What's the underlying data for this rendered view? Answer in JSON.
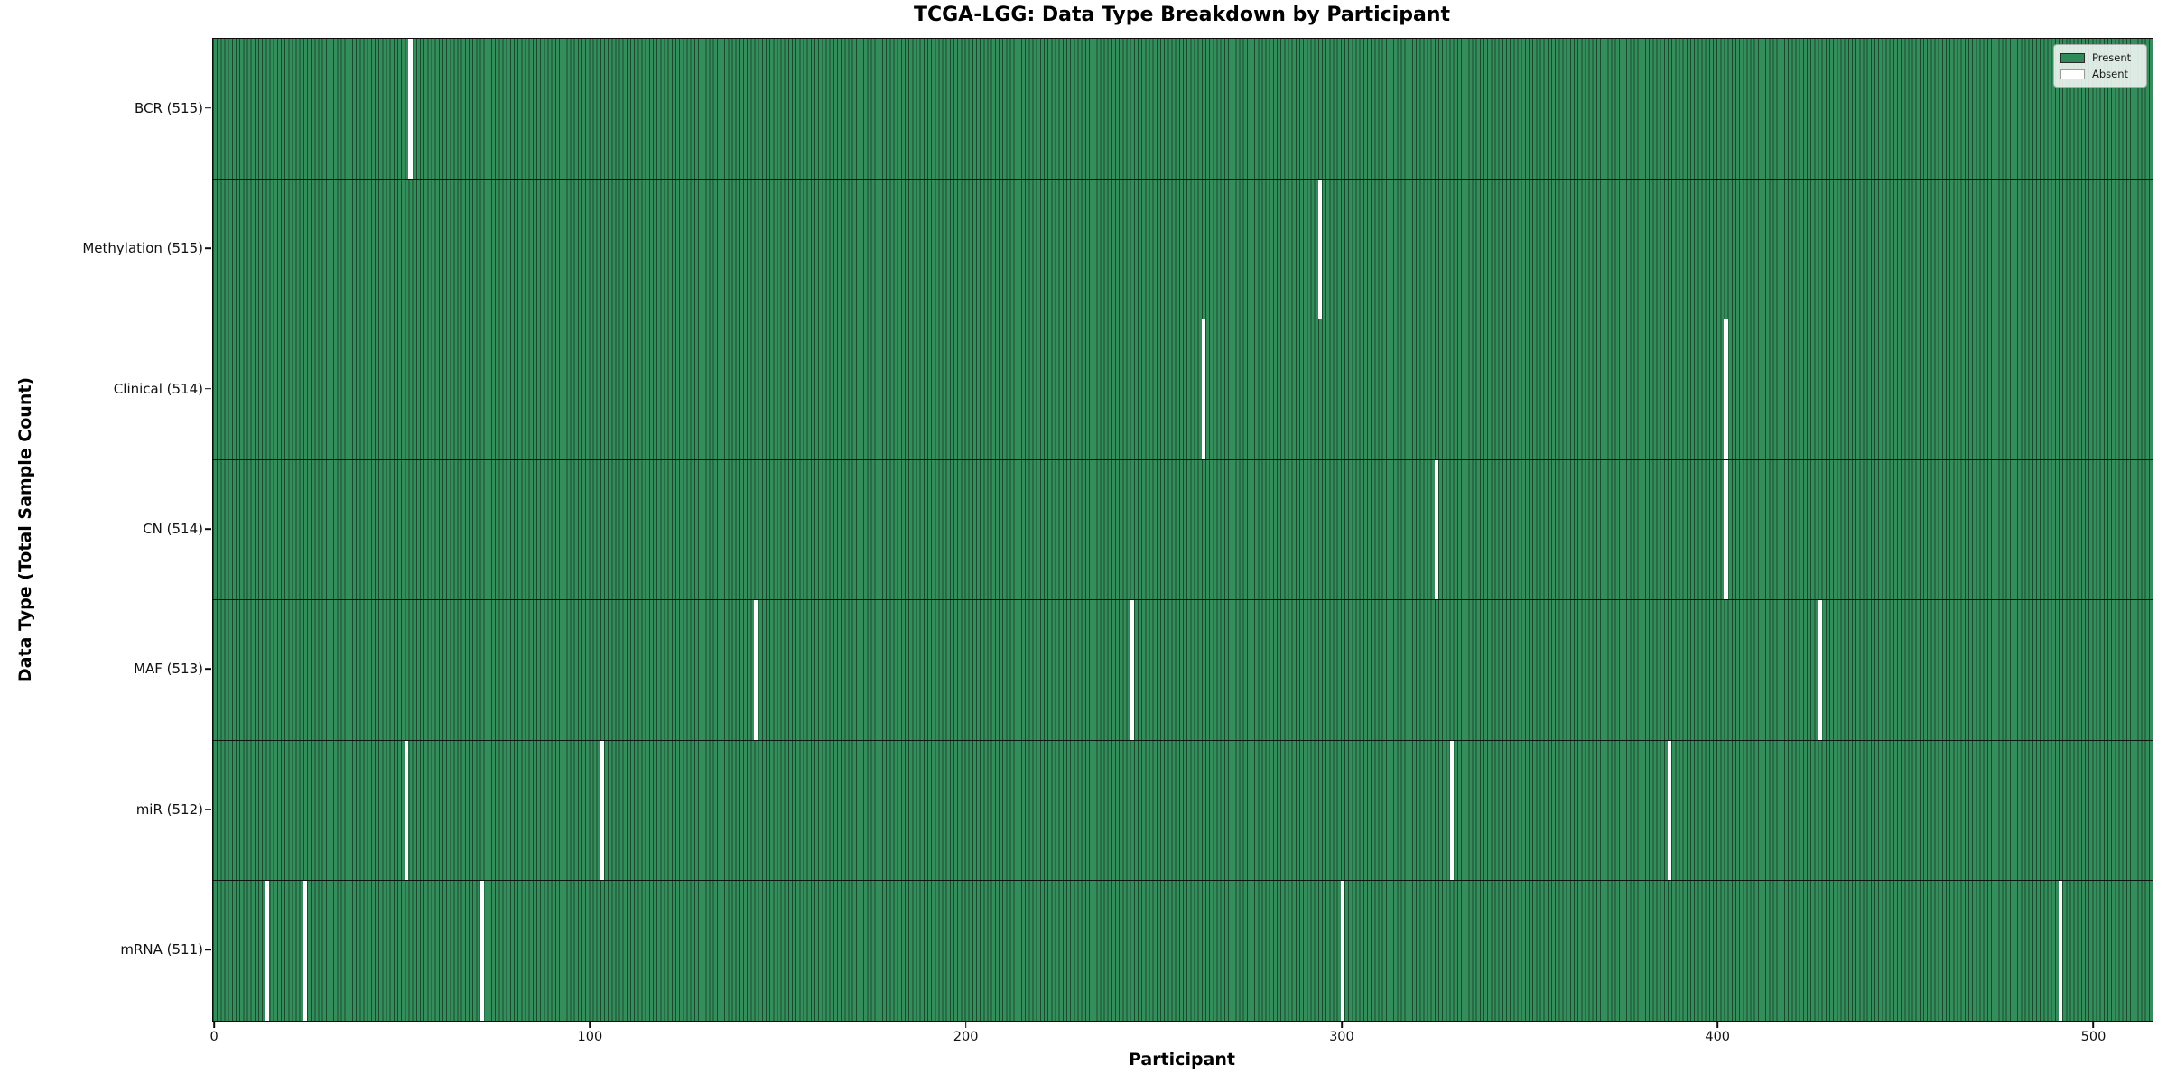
{
  "chart_data": {
    "type": "heatmap",
    "title": "TCGA-LGG: Data Type Breakdown by Participant",
    "xlabel": "Participant",
    "ylabel": "Data Type (Total Sample Count)",
    "n_participants": 516,
    "x_ticks": [
      0,
      100,
      200,
      300,
      400,
      500
    ],
    "grid": false,
    "legend": {
      "position": "upper right",
      "entries": [
        {
          "label": "Present",
          "color": "#2e8b57"
        },
        {
          "label": "Absent",
          "color": "#ffffff"
        }
      ]
    },
    "rows": [
      {
        "label": "BCR (515)",
        "data_type": "BCR",
        "present_count": 515,
        "absent_participants": [
          52
        ]
      },
      {
        "label": "Methylation (515)",
        "data_type": "Methylation",
        "present_count": 515,
        "absent_participants": [
          294
        ]
      },
      {
        "label": "Clinical (514)",
        "data_type": "Clinical",
        "present_count": 514,
        "absent_participants": [
          263,
          402
        ]
      },
      {
        "label": "CN (514)",
        "data_type": "CN",
        "present_count": 514,
        "absent_participants": [
          325,
          402
        ]
      },
      {
        "label": "MAF (513)",
        "data_type": "MAF",
        "present_count": 513,
        "absent_participants": [
          144,
          244,
          427
        ]
      },
      {
        "label": "miR (512)",
        "data_type": "miR",
        "present_count": 512,
        "absent_participants": [
          51,
          103,
          329,
          387
        ]
      },
      {
        "label": "mRNA (511)",
        "data_type": "mRNA",
        "present_count": 511,
        "absent_participants": [
          14,
          24,
          71,
          300,
          491
        ]
      }
    ],
    "colors": {
      "present_fill": "#348e5b",
      "bar_edge": "#1a4a2e",
      "absent": "#ffffff"
    }
  }
}
